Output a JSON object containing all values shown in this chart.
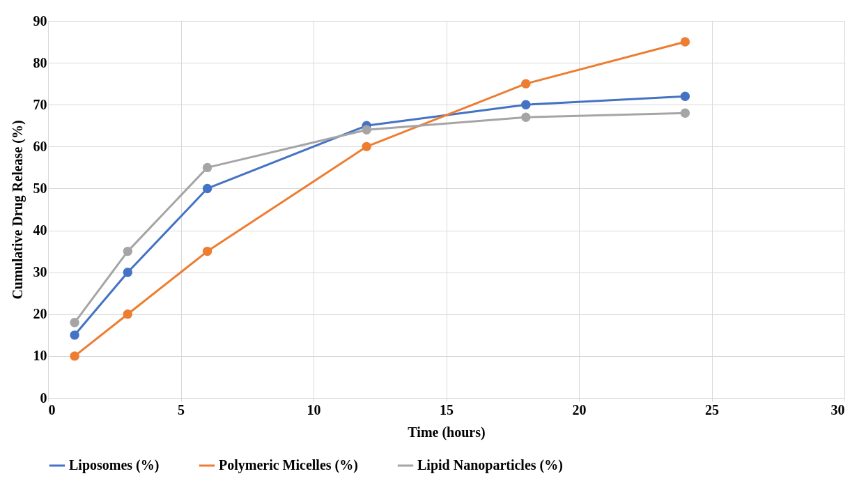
{
  "chart_data": {
    "type": "line",
    "xlabel": "Time (hours)",
    "ylabel": "Cumulative Drug Release (%)",
    "x": [
      1,
      3,
      6,
      12,
      18,
      24
    ],
    "series": [
      {
        "name": "Liposomes (%)",
        "color": "#4472c4",
        "values": [
          15,
          30,
          50,
          65,
          70,
          72
        ]
      },
      {
        "name": "Polymeric Micelles (%)",
        "color": "#ed7d31",
        "values": [
          10,
          20,
          35,
          60,
          75,
          85
        ]
      },
      {
        "name": "Lipid Nanoparticles (%)",
        "color": "#a5a5a5",
        "values": [
          18,
          35,
          55,
          64,
          67,
          68
        ]
      }
    ],
    "xlim": [
      0,
      30
    ],
    "xticks": [
      0,
      5,
      10,
      15,
      20,
      25,
      30
    ],
    "ylim": [
      0,
      90
    ],
    "yticks": [
      0,
      10,
      20,
      30,
      40,
      50,
      60,
      70,
      80,
      90
    ],
    "grid": true,
    "legend": "bottom",
    "marker": "circle",
    "line_style": "solid"
  }
}
